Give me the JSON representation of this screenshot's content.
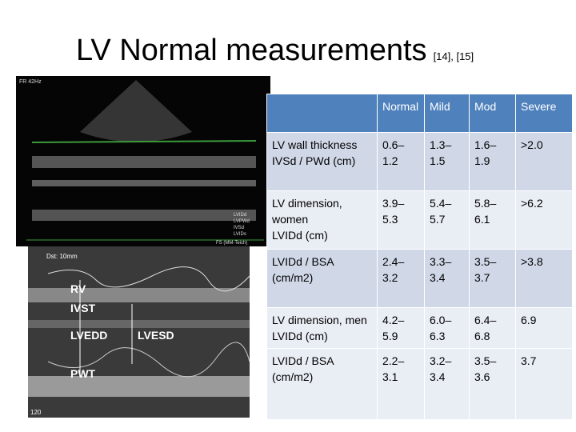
{
  "header": {
    "title": "LV Normal measurements",
    "refs": "[14], [15]"
  },
  "table": {
    "columns": [
      "Normal",
      "Mild",
      "Mod",
      "Severe"
    ],
    "rows": [
      {
        "label": [
          "LV wall thickness",
          "IVSd / PWd (cm)"
        ],
        "values": [
          "0.6–1.2",
          "1.3–1.5",
          "1.6–1.9",
          ">2.0"
        ]
      },
      {
        "label": [
          "LV dimension, women",
          "LVIDd (cm)"
        ],
        "values": [
          "3.9–5.3",
          "5.4–5.7",
          "5.8–6.1",
          ">6.2"
        ]
      },
      {
        "label": [
          "LVIDd / BSA (cm/m2)"
        ],
        "values": [
          "2.4–3.2",
          "3.3–3.4",
          "3.5–3.7",
          ">3.8"
        ]
      },
      {
        "label": [
          "LV dimension, men",
          "LVIDd (cm)"
        ],
        "values": [
          "4.2–5.9",
          "6.0–6.3",
          "6.4–6.8",
          "6.9"
        ]
      },
      {
        "label": [
          "LVIDd / BSA (cm/m2)"
        ],
        "values": [
          "2.2–3.1",
          "3.2–3.4",
          "3.5–3.6",
          "3.7"
        ]
      }
    ]
  },
  "echo_top": {
    "frame_rate": "FR 42Hz",
    "labels": [
      "LVIDd",
      "LVPWd",
      "IVSd",
      "LVIDs"
    ],
    "method": "FS (MM-Teich)"
  },
  "echo_bottom": {
    "distance": "Dst: 10mm",
    "labels": [
      "RV",
      "IVST",
      "LVEDD",
      "LVESD",
      "PWT"
    ],
    "depth": "120"
  }
}
